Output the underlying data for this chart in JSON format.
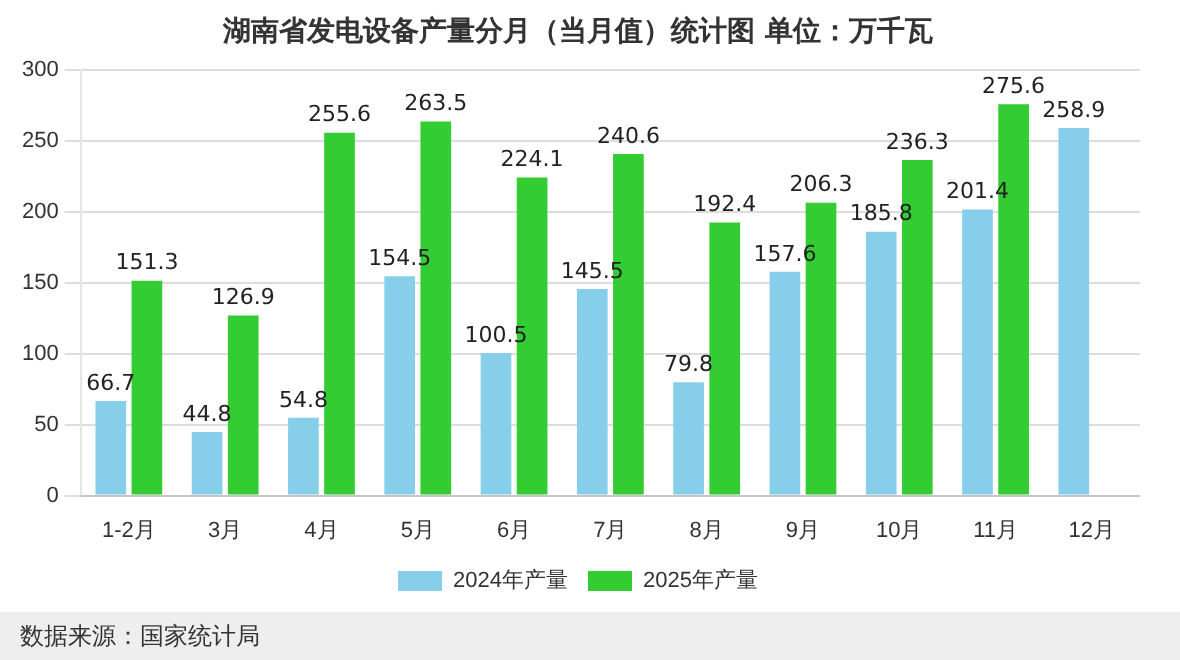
{
  "chart_data": {
    "type": "bar",
    "title": "湖南省发电设备产量分月（当月值）统计图 单位：万千瓦",
    "categories": [
      "1-2月",
      "3月",
      "4月",
      "5月",
      "6月",
      "7月",
      "8月",
      "9月",
      "10月",
      "11月",
      "12月"
    ],
    "series": [
      {
        "name": "2024年产量",
        "color": "#87ceeb",
        "values": [
          66.7,
          44.8,
          54.8,
          154.5,
          100.5,
          145.5,
          79.8,
          157.6,
          185.8,
          201.4,
          258.9
        ]
      },
      {
        "name": "2025年产量",
        "color": "#33cc33",
        "values": [
          151.3,
          126.9,
          255.6,
          263.5,
          224.1,
          240.6,
          192.4,
          206.3,
          236.3,
          275.6,
          null
        ]
      }
    ],
    "ylim": [
      0,
      300
    ],
    "yticks": [
      0,
      50,
      100,
      150,
      200,
      250,
      300
    ],
    "grid": "y",
    "legend": "bottom",
    "data_labels": true,
    "annotations": [
      "数据来源：国家统计局"
    ]
  }
}
